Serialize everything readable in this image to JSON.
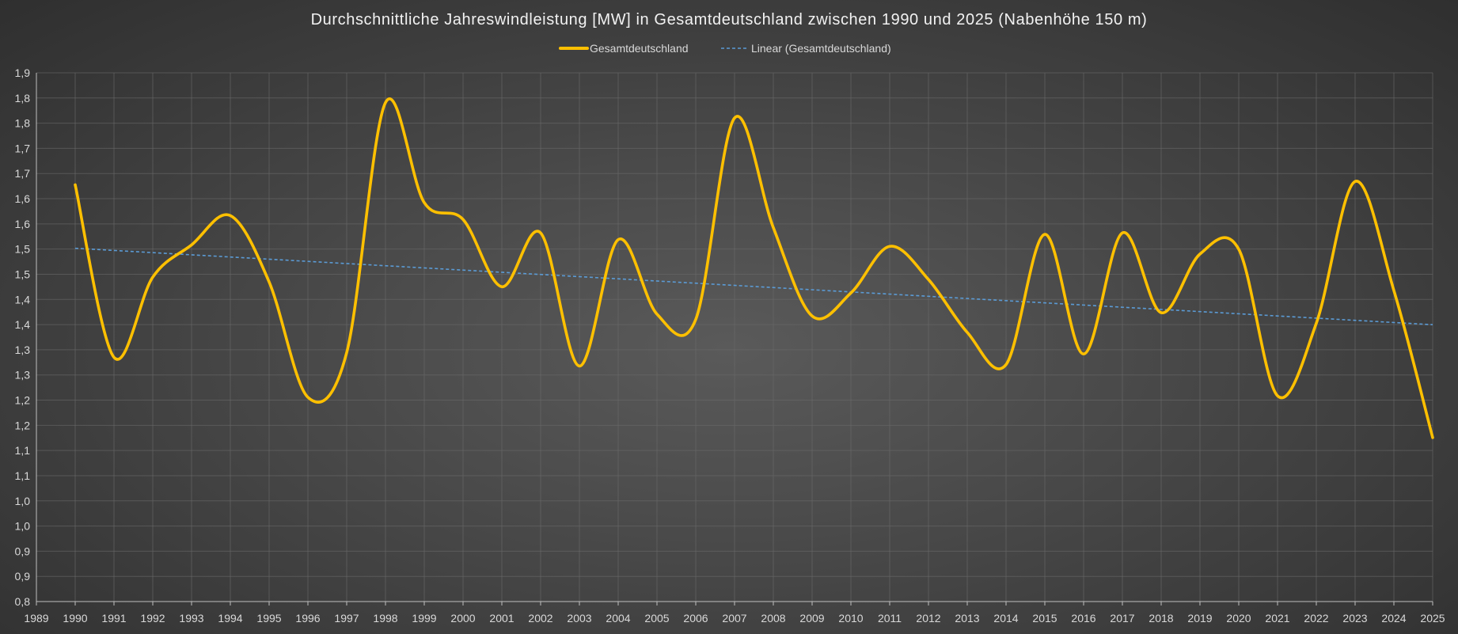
{
  "chart_data": {
    "type": "line",
    "title": "Durchschnittliche Jahreswindleistung [MW] in Gesamtdeutschland zwischen 1990 und 2025 (Nabenhöhe 150 m)",
    "xlabel": "",
    "ylabel": "",
    "legend_position": "top-center",
    "grid": true,
    "xlim": [
      1989,
      2025
    ],
    "ylim": [
      0.8,
      1.9
    ],
    "x_ticks": [
      1989,
      1990,
      1991,
      1992,
      1993,
      1994,
      1995,
      1996,
      1997,
      1998,
      1999,
      2000,
      2001,
      2002,
      2003,
      2004,
      2005,
      2006,
      2007,
      2008,
      2009,
      2010,
      2011,
      2012,
      2013,
      2014,
      2015,
      2016,
      2017,
      2018,
      2019,
      2020,
      2021,
      2022,
      2023,
      2024,
      2025
    ],
    "y_tick_labels": [
      "0,8",
      "0,9",
      "0,9",
      "1,0",
      "1,0",
      "1,1",
      "1,1",
      "1,2",
      "1,2",
      "1,3",
      "1,3",
      "1,4",
      "1,4",
      "1,5",
      "1,5",
      "1,6",
      "1,6",
      "1,7",
      "1,7",
      "1,8",
      "1,8",
      "1,9"
    ],
    "series": [
      {
        "name": "Gesamtdeutschland",
        "color": "#FFC000",
        "style": "solid-smooth",
        "x": [
          1990,
          1991,
          1992,
          1993,
          1994,
          1995,
          1996,
          1997,
          1998,
          1999,
          2000,
          2001,
          2002,
          2003,
          2004,
          2005,
          2006,
          2007,
          2008,
          2009,
          2010,
          2011,
          2012,
          2013,
          2014,
          2015,
          2016,
          2017,
          2018,
          2019,
          2020,
          2021,
          2022,
          2023,
          2024,
          2025
        ],
        "values": [
          1.667,
          1.308,
          1.475,
          1.542,
          1.603,
          1.465,
          1.225,
          1.318,
          1.838,
          1.63,
          1.595,
          1.455,
          1.567,
          1.29,
          1.553,
          1.398,
          1.387,
          1.806,
          1.578,
          1.394,
          1.442,
          1.539,
          1.47,
          1.36,
          1.293,
          1.564,
          1.315,
          1.567,
          1.401,
          1.523,
          1.533,
          1.228,
          1.379,
          1.674,
          1.447,
          1.141
        ]
      },
      {
        "name": "Linear (Gesamtdeutschland)",
        "color": "#5B9BD5",
        "style": "dashed",
        "x": [
          1990,
          2025
        ],
        "values": [
          1.535,
          1.376
        ]
      }
    ]
  }
}
